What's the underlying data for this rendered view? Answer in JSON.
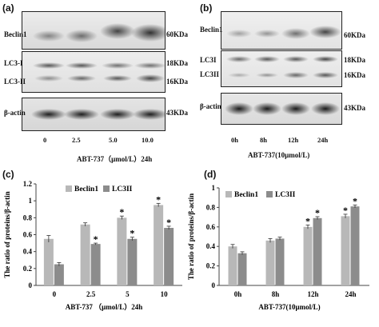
{
  "panels": {
    "a": {
      "letter": "(a)",
      "band_labels": [
        "Beclin1",
        "LC3-I",
        "LC3-II",
        "β-actin"
      ],
      "kda": [
        "60KDa",
        "18KDa",
        "16KDa",
        "43KDa"
      ],
      "lanes": [
        "0",
        "2.5",
        "5.0",
        "10.0"
      ],
      "caption": "ABT-737（μmol/L）24h"
    },
    "b": {
      "letter": "(b)",
      "band_labels": [
        "Beclin1",
        "LC3I",
        "LC3II",
        "β-actin"
      ],
      "kda": [
        "60KDa",
        "18KDa",
        "16KDa",
        "43KDa"
      ],
      "lanes": [
        "0h",
        "8h",
        "12h",
        "24h"
      ],
      "caption": "ABT-737(10μmol/L)"
    },
    "c": {
      "letter": "(c)"
    },
    "d": {
      "letter": "(d)"
    }
  },
  "chart_data": [
    {
      "type": "bar",
      "ylabel": "The ratio of proteins/β-actin",
      "xlabel": "ABT-737 （μmol/L）24h",
      "categories": [
        "0",
        "2.5",
        "5",
        "10"
      ],
      "ylim": [
        0,
        1.2
      ],
      "yticks": [
        "0",
        "0.2",
        "0.4",
        "0.6",
        "0.8",
        "1",
        "1.2"
      ],
      "legend_position": "top",
      "series": [
        {
          "name": "Beclin1",
          "values": [
            0.55,
            0.72,
            0.8,
            0.95
          ],
          "errors": [
            0.04,
            0.02,
            0.02,
            0.02
          ],
          "stars": [
            false,
            false,
            true,
            true
          ],
          "color": "#b8b8b8"
        },
        {
          "name": "LC3II",
          "values": [
            0.25,
            0.49,
            0.55,
            0.68
          ],
          "errors": [
            0.02,
            0.01,
            0.02,
            0.02
          ],
          "stars": [
            false,
            true,
            true,
            true
          ],
          "color": "#8c8c8c"
        }
      ],
      "star_symbol": "*"
    },
    {
      "type": "bar",
      "ylabel": "The ratio of proteins/β-actin",
      "xlabel": "ABT-737(10μmol/L)",
      "categories": [
        "0h",
        "8h",
        "12h",
        "24h"
      ],
      "ylim": [
        0,
        1
      ],
      "yticks": [
        "0",
        "0.2",
        "0.4",
        "0.6",
        "0.8",
        "1"
      ],
      "legend_position": "top",
      "series": [
        {
          "name": "Beclin1",
          "values": [
            0.4,
            0.46,
            0.6,
            0.71
          ],
          "errors": [
            0.02,
            0.02,
            0.02,
            0.02
          ],
          "stars": [
            false,
            false,
            true,
            true
          ],
          "color": "#b8b8b8"
        },
        {
          "name": "LC3II",
          "values": [
            0.33,
            0.48,
            0.69,
            0.81
          ],
          "errors": [
            0.015,
            0.015,
            0.015,
            0.015
          ],
          "stars": [
            false,
            false,
            true,
            true
          ],
          "color": "#8c8c8c"
        }
      ],
      "star_symbol": "*"
    }
  ]
}
